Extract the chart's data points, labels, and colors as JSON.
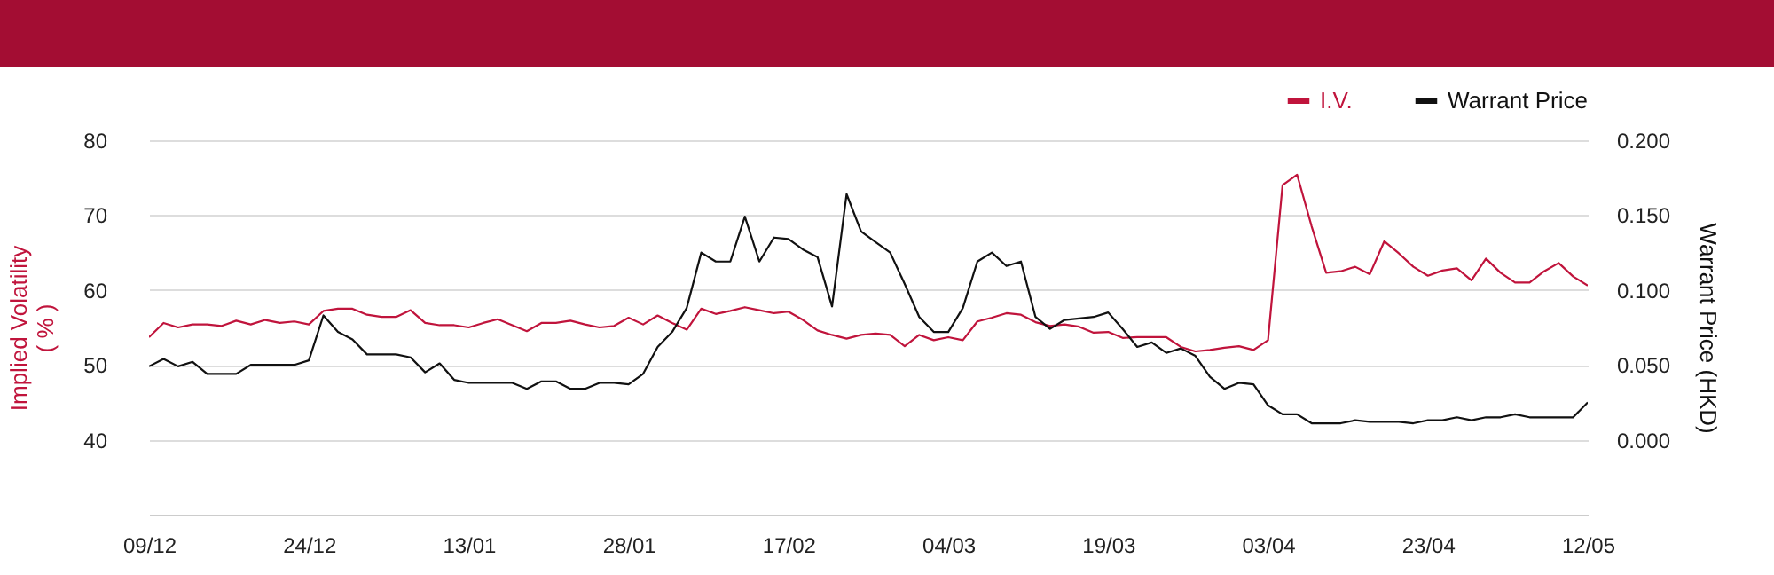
{
  "chart_data": {
    "type": "line",
    "ylabel": "Implied Volatility ( % )",
    "y2label": "Warrant Price (HKD)",
    "categories": [
      "09/12",
      null,
      null,
      null,
      null,
      null,
      null,
      null,
      null,
      null,
      null,
      "24/12",
      null,
      null,
      null,
      null,
      null,
      null,
      null,
      null,
      null,
      null,
      "13/01",
      null,
      null,
      null,
      null,
      null,
      null,
      null,
      null,
      null,
      null,
      "28/01",
      null,
      null,
      null,
      null,
      null,
      null,
      null,
      null,
      null,
      null,
      "17/02",
      null,
      null,
      null,
      null,
      null,
      null,
      null,
      null,
      null,
      null,
      "04/03",
      null,
      null,
      null,
      null,
      null,
      null,
      null,
      null,
      null,
      null,
      "19/03",
      null,
      null,
      null,
      null,
      null,
      null,
      null,
      null,
      null,
      null,
      "03/04",
      null,
      null,
      null,
      null,
      null,
      null,
      null,
      null,
      null,
      null,
      "23/04",
      null,
      null,
      null,
      null,
      null,
      null,
      null,
      null,
      null,
      null,
      "12/05"
    ],
    "series": [
      {
        "name": "I.V.",
        "color": "#c0143c",
        "values": [
          53.7,
          55.6,
          55.0,
          55.4,
          55.4,
          55.2,
          55.9,
          55.4,
          56.0,
          55.6,
          55.8,
          55.4,
          57.2,
          57.5,
          57.5,
          56.7,
          56.4,
          56.4,
          57.3,
          55.6,
          55.3,
          55.3,
          55.0,
          55.6,
          56.1,
          55.3,
          54.5,
          55.6,
          55.6,
          55.9,
          55.4,
          55.0,
          55.2,
          56.3,
          55.4,
          56.6,
          55.6,
          54.7,
          57.5,
          56.8,
          57.2,
          57.7,
          57.3,
          56.9,
          57.1,
          56.0,
          54.6,
          54.0,
          53.5,
          54.0,
          54.2,
          54.0,
          52.5,
          54.0,
          53.3,
          53.7,
          53.3,
          55.8,
          56.3,
          56.9,
          56.7,
          55.7,
          55.2,
          55.4,
          55.1,
          54.3,
          54.4,
          53.6,
          53.7,
          53.7,
          53.7,
          52.4,
          51.8,
          52.0,
          52.3,
          52.5,
          52.0,
          53.3,
          74.0,
          75.4,
          68.5,
          62.3,
          62.5,
          63.1,
          62.1,
          66.5,
          64.9,
          63.1,
          61.9,
          62.6,
          62.9,
          61.3,
          64.2,
          62.3,
          61.0,
          61.0,
          62.5,
          63.6,
          61.8,
          60.6
        ]
      },
      {
        "name": "Warrant Price",
        "color": "#111111",
        "axis": "y2",
        "values": [
          0.049,
          0.054,
          0.049,
          0.052,
          0.044,
          0.044,
          0.044,
          0.05,
          0.05,
          0.05,
          0.05,
          0.053,
          0.083,
          0.072,
          0.067,
          0.057,
          0.057,
          0.057,
          0.055,
          0.045,
          0.051,
          0.04,
          0.038,
          0.038,
          0.038,
          0.038,
          0.034,
          0.039,
          0.039,
          0.034,
          0.034,
          0.038,
          0.038,
          0.037,
          0.044,
          0.062,
          0.072,
          0.088,
          0.125,
          0.119,
          0.119,
          0.149,
          0.119,
          0.135,
          0.134,
          0.127,
          0.122,
          0.089,
          0.164,
          0.139,
          0.132,
          0.125,
          0.104,
          0.082,
          0.072,
          0.072,
          0.088,
          0.119,
          0.125,
          0.116,
          0.119,
          0.082,
          0.074,
          0.08,
          0.081,
          0.082,
          0.085,
          0.074,
          0.062,
          0.065,
          0.058,
          0.061,
          0.056,
          0.042,
          0.034,
          0.038,
          0.037,
          0.023,
          0.017,
          0.017,
          0.011,
          0.011,
          0.011,
          0.013,
          0.012,
          0.012,
          0.012,
          0.011,
          0.013,
          0.013,
          0.015,
          0.013,
          0.015,
          0.015,
          0.017,
          0.015,
          0.015,
          0.015,
          0.015,
          0.025
        ]
      }
    ],
    "ylim": [
      30,
      80
    ],
    "yticks": [
      40,
      50,
      60,
      70,
      80
    ],
    "y2lim": [
      -0.05,
      0.2
    ],
    "y2ticks": [
      {
        "value": 0,
        "label": "0.000"
      },
      {
        "value": 0.05,
        "label": "0.050"
      },
      {
        "value": 0.1,
        "label": "0.100"
      },
      {
        "value": 0.15,
        "label": "0.150"
      },
      {
        "value": 0.2,
        "label": "0.200"
      }
    ],
    "grid": "y",
    "legend": "top right"
  }
}
